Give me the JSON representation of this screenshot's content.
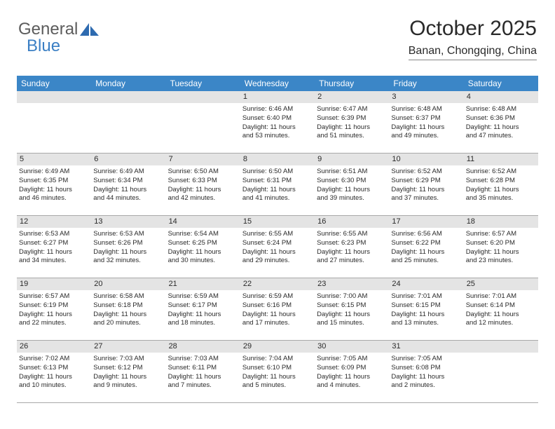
{
  "logo": {
    "text1": "General",
    "text2": "Blue"
  },
  "header": {
    "month": "October 2025",
    "location": "Banan, Chongqing, China"
  },
  "calendar": {
    "accent_color": "#3b86c7",
    "daynum_bg": "#e4e4e4",
    "border_color": "#a8a8a8",
    "dayNames": [
      "Sunday",
      "Monday",
      "Tuesday",
      "Wednesday",
      "Thursday",
      "Friday",
      "Saturday"
    ],
    "weeks": [
      [
        {
          "num": "",
          "lines": []
        },
        {
          "num": "",
          "lines": []
        },
        {
          "num": "",
          "lines": []
        },
        {
          "num": "1",
          "lines": [
            "Sunrise: 6:46 AM",
            "Sunset: 6:40 PM",
            "Daylight: 11 hours",
            "and 53 minutes."
          ]
        },
        {
          "num": "2",
          "lines": [
            "Sunrise: 6:47 AM",
            "Sunset: 6:39 PM",
            "Daylight: 11 hours",
            "and 51 minutes."
          ]
        },
        {
          "num": "3",
          "lines": [
            "Sunrise: 6:48 AM",
            "Sunset: 6:37 PM",
            "Daylight: 11 hours",
            "and 49 minutes."
          ]
        },
        {
          "num": "4",
          "lines": [
            "Sunrise: 6:48 AM",
            "Sunset: 6:36 PM",
            "Daylight: 11 hours",
            "and 47 minutes."
          ]
        }
      ],
      [
        {
          "num": "5",
          "lines": [
            "Sunrise: 6:49 AM",
            "Sunset: 6:35 PM",
            "Daylight: 11 hours",
            "and 46 minutes."
          ]
        },
        {
          "num": "6",
          "lines": [
            "Sunrise: 6:49 AM",
            "Sunset: 6:34 PM",
            "Daylight: 11 hours",
            "and 44 minutes."
          ]
        },
        {
          "num": "7",
          "lines": [
            "Sunrise: 6:50 AM",
            "Sunset: 6:33 PM",
            "Daylight: 11 hours",
            "and 42 minutes."
          ]
        },
        {
          "num": "8",
          "lines": [
            "Sunrise: 6:50 AM",
            "Sunset: 6:31 PM",
            "Daylight: 11 hours",
            "and 41 minutes."
          ]
        },
        {
          "num": "9",
          "lines": [
            "Sunrise: 6:51 AM",
            "Sunset: 6:30 PM",
            "Daylight: 11 hours",
            "and 39 minutes."
          ]
        },
        {
          "num": "10",
          "lines": [
            "Sunrise: 6:52 AM",
            "Sunset: 6:29 PM",
            "Daylight: 11 hours",
            "and 37 minutes."
          ]
        },
        {
          "num": "11",
          "lines": [
            "Sunrise: 6:52 AM",
            "Sunset: 6:28 PM",
            "Daylight: 11 hours",
            "and 35 minutes."
          ]
        }
      ],
      [
        {
          "num": "12",
          "lines": [
            "Sunrise: 6:53 AM",
            "Sunset: 6:27 PM",
            "Daylight: 11 hours",
            "and 34 minutes."
          ]
        },
        {
          "num": "13",
          "lines": [
            "Sunrise: 6:53 AM",
            "Sunset: 6:26 PM",
            "Daylight: 11 hours",
            "and 32 minutes."
          ]
        },
        {
          "num": "14",
          "lines": [
            "Sunrise: 6:54 AM",
            "Sunset: 6:25 PM",
            "Daylight: 11 hours",
            "and 30 minutes."
          ]
        },
        {
          "num": "15",
          "lines": [
            "Sunrise: 6:55 AM",
            "Sunset: 6:24 PM",
            "Daylight: 11 hours",
            "and 29 minutes."
          ]
        },
        {
          "num": "16",
          "lines": [
            "Sunrise: 6:55 AM",
            "Sunset: 6:23 PM",
            "Daylight: 11 hours",
            "and 27 minutes."
          ]
        },
        {
          "num": "17",
          "lines": [
            "Sunrise: 6:56 AM",
            "Sunset: 6:22 PM",
            "Daylight: 11 hours",
            "and 25 minutes."
          ]
        },
        {
          "num": "18",
          "lines": [
            "Sunrise: 6:57 AM",
            "Sunset: 6:20 PM",
            "Daylight: 11 hours",
            "and 23 minutes."
          ]
        }
      ],
      [
        {
          "num": "19",
          "lines": [
            "Sunrise: 6:57 AM",
            "Sunset: 6:19 PM",
            "Daylight: 11 hours",
            "and 22 minutes."
          ]
        },
        {
          "num": "20",
          "lines": [
            "Sunrise: 6:58 AM",
            "Sunset: 6:18 PM",
            "Daylight: 11 hours",
            "and 20 minutes."
          ]
        },
        {
          "num": "21",
          "lines": [
            "Sunrise: 6:59 AM",
            "Sunset: 6:17 PM",
            "Daylight: 11 hours",
            "and 18 minutes."
          ]
        },
        {
          "num": "22",
          "lines": [
            "Sunrise: 6:59 AM",
            "Sunset: 6:16 PM",
            "Daylight: 11 hours",
            "and 17 minutes."
          ]
        },
        {
          "num": "23",
          "lines": [
            "Sunrise: 7:00 AM",
            "Sunset: 6:15 PM",
            "Daylight: 11 hours",
            "and 15 minutes."
          ]
        },
        {
          "num": "24",
          "lines": [
            "Sunrise: 7:01 AM",
            "Sunset: 6:15 PM",
            "Daylight: 11 hours",
            "and 13 minutes."
          ]
        },
        {
          "num": "25",
          "lines": [
            "Sunrise: 7:01 AM",
            "Sunset: 6:14 PM",
            "Daylight: 11 hours",
            "and 12 minutes."
          ]
        }
      ],
      [
        {
          "num": "26",
          "lines": [
            "Sunrise: 7:02 AM",
            "Sunset: 6:13 PM",
            "Daylight: 11 hours",
            "and 10 minutes."
          ]
        },
        {
          "num": "27",
          "lines": [
            "Sunrise: 7:03 AM",
            "Sunset: 6:12 PM",
            "Daylight: 11 hours",
            "and 9 minutes."
          ]
        },
        {
          "num": "28",
          "lines": [
            "Sunrise: 7:03 AM",
            "Sunset: 6:11 PM",
            "Daylight: 11 hours",
            "and 7 minutes."
          ]
        },
        {
          "num": "29",
          "lines": [
            "Sunrise: 7:04 AM",
            "Sunset: 6:10 PM",
            "Daylight: 11 hours",
            "and 5 minutes."
          ]
        },
        {
          "num": "30",
          "lines": [
            "Sunrise: 7:05 AM",
            "Sunset: 6:09 PM",
            "Daylight: 11 hours",
            "and 4 minutes."
          ]
        },
        {
          "num": "31",
          "lines": [
            "Sunrise: 7:05 AM",
            "Sunset: 6:08 PM",
            "Daylight: 11 hours",
            "and 2 minutes."
          ]
        },
        {
          "num": "",
          "lines": []
        }
      ]
    ]
  }
}
